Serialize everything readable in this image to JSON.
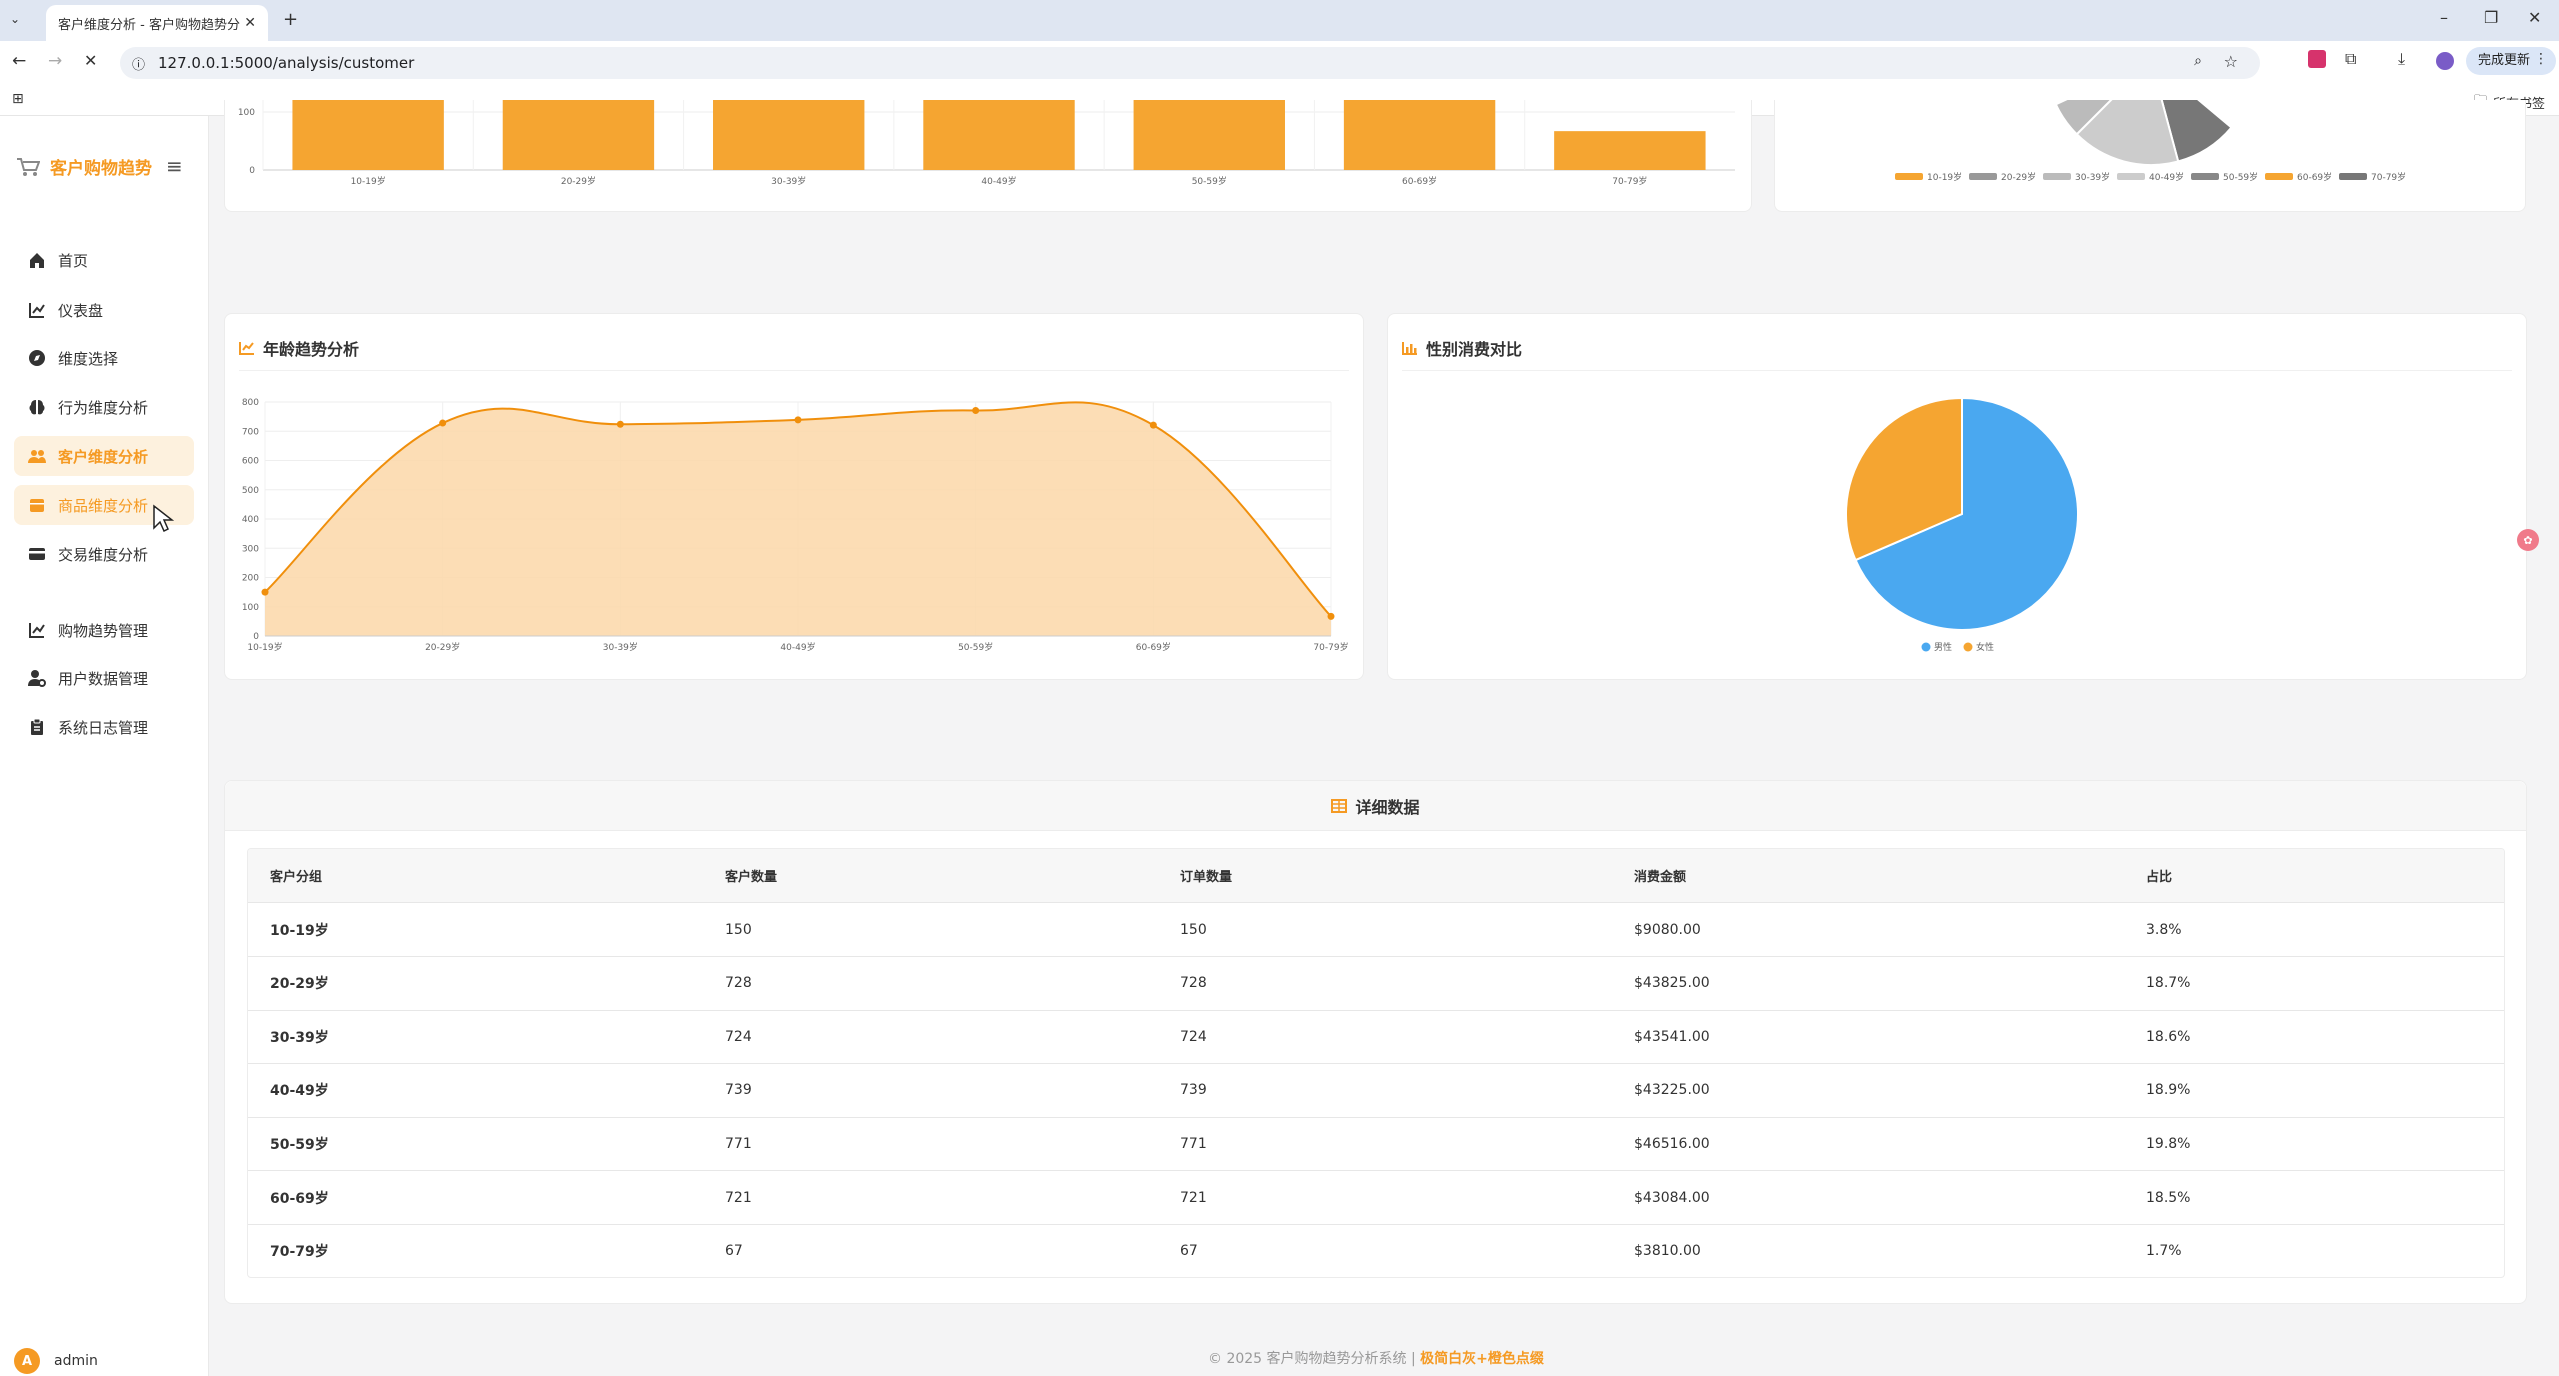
{
  "browser": {
    "tab_title": "客户维度分析 - 客户购物趋势分",
    "url": "127.0.0.1:5000/analysis/customer",
    "update_button": "完成更新",
    "bookmarks_label": "所有书签"
  },
  "sidebar": {
    "brand": "客户购物趋势",
    "items": [
      {
        "label": "首页",
        "icon": "home-icon"
      },
      {
        "label": "仪表盘",
        "icon": "chart-line-icon"
      },
      {
        "label": "维度选择",
        "icon": "compass-icon"
      },
      {
        "label": "行为维度分析",
        "icon": "brain-icon"
      },
      {
        "label": "客户维度分析",
        "icon": "users-icon",
        "active": true
      },
      {
        "label": "商品维度分析",
        "icon": "box-icon"
      },
      {
        "label": "交易维度分析",
        "icon": "card-icon"
      },
      {
        "label": "购物趋势管理",
        "icon": "chart-line-icon"
      },
      {
        "label": "用户数据管理",
        "icon": "user-gear-icon"
      },
      {
        "label": "系统日志管理",
        "icon": "clipboard-icon"
      }
    ],
    "user": {
      "initial": "A",
      "name": "admin"
    }
  },
  "top_bar_chart": {
    "categories": [
      "10-19岁",
      "20-29岁",
      "30-39岁",
      "40-49岁",
      "50-59岁",
      "60-69岁",
      "70-79岁"
    ],
    "y_ticks": [
      "100",
      "0"
    ]
  },
  "top_pie_legend": [
    "10-19岁",
    "20-29岁",
    "30-39岁",
    "40-49岁",
    "50-59岁",
    "60-69岁",
    "70-79岁"
  ],
  "age_trend": {
    "title": "年龄趋势分析"
  },
  "gender": {
    "title": "性别消费对比"
  },
  "table": {
    "title": "详细数据",
    "headers": [
      "客户分组",
      "客户数量",
      "订单数量",
      "消费金额",
      "占比"
    ],
    "rows": [
      [
        "10-19岁",
        "150",
        "150",
        "$9080.00",
        "3.8%"
      ],
      [
        "20-29岁",
        "728",
        "728",
        "$43825.00",
        "18.7%"
      ],
      [
        "30-39岁",
        "724",
        "724",
        "$43541.00",
        "18.6%"
      ],
      [
        "40-49岁",
        "739",
        "739",
        "$43225.00",
        "18.9%"
      ],
      [
        "50-59岁",
        "771",
        "771",
        "$46516.00",
        "19.8%"
      ],
      [
        "60-69岁",
        "721",
        "721",
        "$43084.00",
        "18.5%"
      ],
      [
        "70-79岁",
        "67",
        "67",
        "$3810.00",
        "1.7%"
      ]
    ]
  },
  "footer": {
    "copyright": "© 2025 客户购物趋势分析系统 |",
    "theme": "极简白灰+橙色点缀"
  },
  "colors": {
    "accent": "#f59a23",
    "male": "#4aa8f0",
    "female": "#f5a531"
  },
  "chart_data": [
    {
      "type": "line",
      "title": "年龄趋势分析",
      "categories": [
        "10-19岁",
        "20-29岁",
        "30-39岁",
        "40-49岁",
        "50-59岁",
        "60-69岁",
        "70-79岁"
      ],
      "series": [
        {
          "values": [
            150,
            728,
            724,
            739,
            771,
            721,
            67
          ]
        }
      ],
      "ylim": [
        0,
        800
      ],
      "y_ticks": [
        0,
        100,
        200,
        300,
        400,
        500,
        600,
        700,
        800
      ],
      "area": true
    },
    {
      "type": "pie",
      "title": "性别消费对比",
      "categories": [
        "男性",
        "女性"
      ],
      "values": [
        68.5,
        31.5
      ]
    },
    {
      "type": "bar",
      "categories": [
        "10-19岁",
        "20-29岁",
        "30-39岁",
        "40-49岁",
        "50-59岁",
        "60-69岁",
        "70-79岁"
      ],
      "values": [
        150,
        728,
        724,
        739,
        771,
        721,
        67
      ],
      "partially_visible": true
    }
  ]
}
